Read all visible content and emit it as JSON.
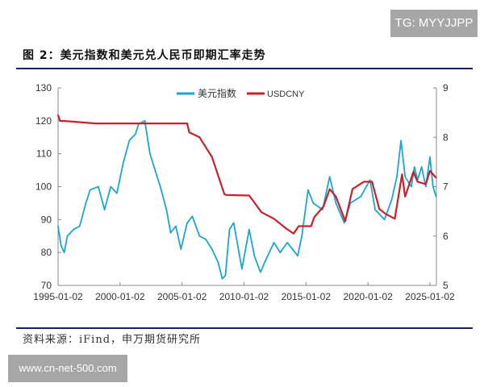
{
  "watermark_top": "TG: MYYJJPP",
  "watermark_bottom": "www.cn-net-500.com",
  "figure_title": "图 2：美元指数和美元兑人民币即期汇率走势",
  "source": "资料来源：iFind，申万期货研究所",
  "chart_data": {
    "type": "line",
    "legend_position": "top-center",
    "grid": false,
    "x_ticks": [
      "1995-01-02",
      "2000-01-02",
      "2005-01-02",
      "2010-01-02",
      "2015-01-02",
      "2020-01-02",
      "2025-01-02"
    ],
    "xlim": [
      "1995-01-02",
      "2025-08-01"
    ],
    "y_left": {
      "ylim": [
        70,
        130
      ],
      "ticks": [
        70,
        80,
        90,
        100,
        110,
        120,
        130
      ]
    },
    "y_right": {
      "ylim": [
        5,
        9
      ],
      "ticks": [
        5,
        6,
        7,
        8,
        9
      ]
    },
    "series": [
      {
        "name": "美元指数",
        "axis": "left",
        "color": "#1aa7cf",
        "x": [
          "1995-01",
          "1995-04",
          "1995-07",
          "1995-10",
          "1996-04",
          "1996-10",
          "1997-04",
          "1997-08",
          "1998-04",
          "1998-10",
          "1999-04",
          "1999-10",
          "2000-04",
          "2000-10",
          "2001-04",
          "2001-07",
          "2002-01",
          "2002-06",
          "2002-10",
          "2003-04",
          "2003-10",
          "2004-02",
          "2004-07",
          "2004-12",
          "2005-06",
          "2005-11",
          "2006-06",
          "2006-12",
          "2007-06",
          "2007-12",
          "2008-04",
          "2008-07",
          "2008-11",
          "2009-03",
          "2009-11",
          "2010-06",
          "2010-11",
          "2011-05",
          "2011-09",
          "2012-06",
          "2012-12",
          "2013-07",
          "2014-05",
          "2014-09",
          "2015-03",
          "2015-08",
          "2016-05",
          "2016-12",
          "2017-06",
          "2018-02",
          "2018-08",
          "2019-06",
          "2020-03",
          "2020-08",
          "2021-05",
          "2021-12",
          "2022-05",
          "2022-09",
          "2023-01",
          "2023-07",
          "2023-10",
          "2024-01",
          "2024-05",
          "2024-09",
          "2025-01",
          "2025-04",
          "2025-07"
        ],
        "values": [
          88,
          82,
          80,
          85,
          87,
          88,
          95,
          99,
          100,
          93,
          100,
          98,
          107,
          114,
          116,
          119,
          120,
          110,
          106,
          100,
          93,
          86,
          88,
          81,
          89,
          91,
          85,
          84,
          81,
          77,
          72,
          73,
          87,
          89,
          75,
          87,
          79,
          74,
          77,
          83,
          80,
          83,
          79,
          85,
          99,
          95,
          93,
          103,
          95,
          89,
          95,
          97,
          102,
          93,
          90,
          96,
          103,
          114,
          103,
          100,
          106,
          102,
          106,
          100,
          109,
          100,
          97
        ]
      },
      {
        "name": "USDCNY",
        "axis": "right",
        "color": "#c8202c",
        "x": [
          "1995-01",
          "1995-03",
          "1995-06",
          "1996-01",
          "1998-01",
          "2000-01",
          "2003-01",
          "2005-06",
          "2005-08",
          "2006-06",
          "2007-06",
          "2008-06",
          "2008-08",
          "2010-06",
          "2011-06",
          "2012-06",
          "2013-06",
          "2014-01",
          "2014-06",
          "2015-06",
          "2015-09",
          "2016-06",
          "2016-12",
          "2017-06",
          "2018-03",
          "2018-10",
          "2019-09",
          "2020-05",
          "2020-12",
          "2021-06",
          "2022-03",
          "2022-10",
          "2023-01",
          "2023-09",
          "2024-01",
          "2024-09",
          "2025-01",
          "2025-07"
        ],
        "values": [
          8.45,
          8.33,
          8.33,
          8.32,
          8.28,
          8.28,
          8.28,
          8.28,
          8.1,
          8.0,
          7.6,
          6.85,
          6.83,
          6.82,
          6.48,
          6.35,
          6.15,
          6.05,
          6.2,
          6.2,
          6.38,
          6.6,
          6.95,
          6.8,
          6.3,
          6.95,
          7.1,
          7.1,
          6.55,
          6.45,
          6.35,
          7.25,
          6.8,
          7.3,
          7.1,
          7.05,
          7.32,
          7.18
        ]
      }
    ]
  }
}
